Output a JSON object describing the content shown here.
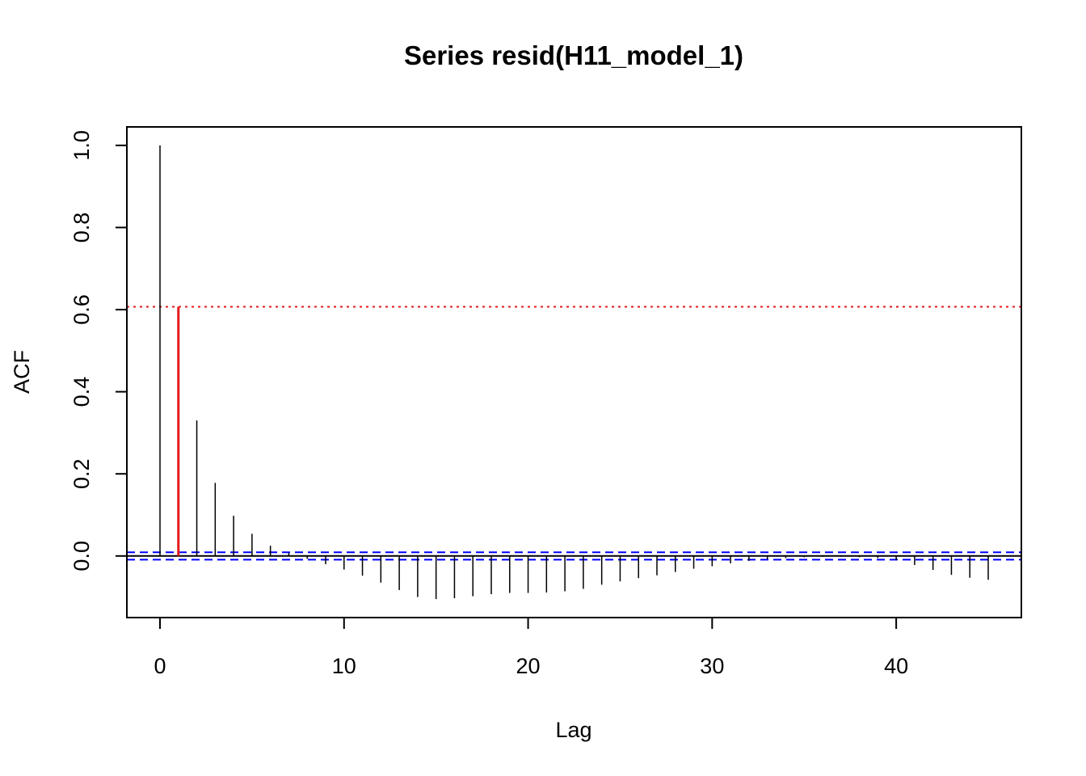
{
  "chart_data": {
    "type": "bar",
    "title": "Series resid(H11_model_1)",
    "xlabel": "Lag",
    "ylabel": "ACF",
    "xlim": [
      -1.8,
      46.8
    ],
    "ylim": [
      -0.15,
      1.045
    ],
    "x_ticks": [
      0,
      10,
      20,
      30,
      40
    ],
    "y_ticks": [
      0.0,
      0.2,
      0.4,
      0.6,
      0.8,
      1.0
    ],
    "x_tick_labels": [
      "0",
      "10",
      "20",
      "30",
      "40"
    ],
    "y_tick_labels": [
      "0.0",
      "0.2",
      "0.4",
      "0.6",
      "0.8",
      "1.0"
    ],
    "lags": [
      0,
      1,
      2,
      3,
      4,
      5,
      6,
      7,
      8,
      9,
      10,
      11,
      12,
      13,
      14,
      15,
      16,
      17,
      18,
      19,
      20,
      21,
      22,
      23,
      24,
      25,
      26,
      27,
      28,
      29,
      30,
      31,
      32,
      33,
      34,
      35,
      36,
      37,
      38,
      39,
      40,
      41,
      42,
      43,
      44,
      45
    ],
    "acf": [
      1.0,
      0.607,
      0.33,
      0.178,
      0.098,
      0.054,
      0.025,
      0.008,
      -0.007,
      -0.02,
      -0.033,
      -0.048,
      -0.065,
      -0.083,
      -0.1,
      -0.105,
      -0.103,
      -0.098,
      -0.093,
      -0.09,
      -0.09,
      -0.089,
      -0.086,
      -0.08,
      -0.07,
      -0.062,
      -0.054,
      -0.047,
      -0.039,
      -0.031,
      -0.025,
      -0.018,
      -0.012,
      -0.008,
      -0.005,
      -0.003,
      -0.002,
      -0.002,
      -0.003,
      -0.005,
      -0.01,
      -0.022,
      -0.034,
      -0.046,
      -0.053,
      -0.058
    ],
    "highlight": {
      "lag": 1,
      "value": 0.607,
      "color": "#e31a1c"
    },
    "reference_line": {
      "value": 0.607,
      "color": "#e31a1c",
      "style": "dotted"
    },
    "confidence_bounds": {
      "upper": 0.009,
      "lower": -0.009,
      "color": "#0000ff",
      "style": "dashed"
    },
    "zero_line": 0.0,
    "grid": false
  }
}
